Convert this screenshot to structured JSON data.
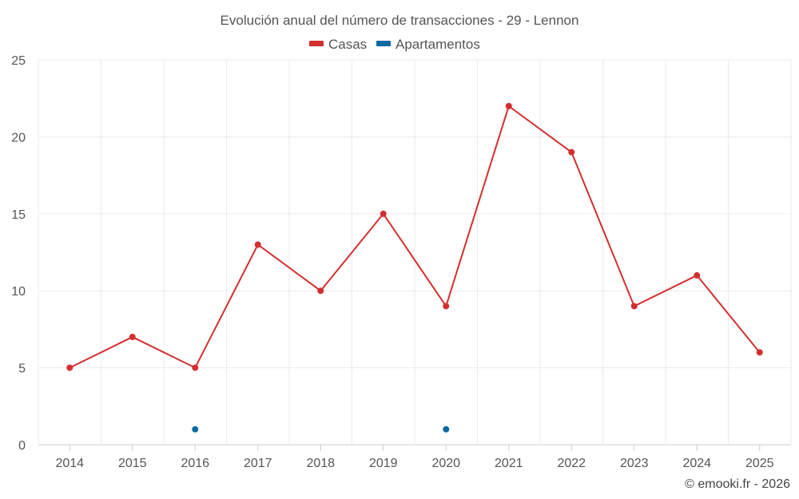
{
  "chart_data": {
    "type": "line",
    "title": "Evolución anual del número de transacciones - 29 - Lennon",
    "categories": [
      "2014",
      "2015",
      "2016",
      "2017",
      "2018",
      "2019",
      "2020",
      "2021",
      "2022",
      "2023",
      "2024",
      "2025"
    ],
    "series": [
      {
        "name": "Casas",
        "color": "#d32f2f",
        "values": [
          5,
          7,
          5,
          13,
          10,
          15,
          9,
          22,
          19,
          9,
          11,
          6
        ]
      },
      {
        "name": "Apartamentos",
        "color": "#0a6aa1",
        "values": [
          null,
          null,
          1,
          null,
          null,
          null,
          1,
          null,
          null,
          null,
          null,
          null
        ]
      }
    ],
    "ylim": [
      0,
      25
    ],
    "yticks": [
      "0",
      "5",
      "10",
      "15",
      "20",
      "25"
    ],
    "xlabel": "",
    "ylabel": "",
    "grid": true,
    "legend": "top-center"
  },
  "credit": "© emooki.fr - 2026"
}
